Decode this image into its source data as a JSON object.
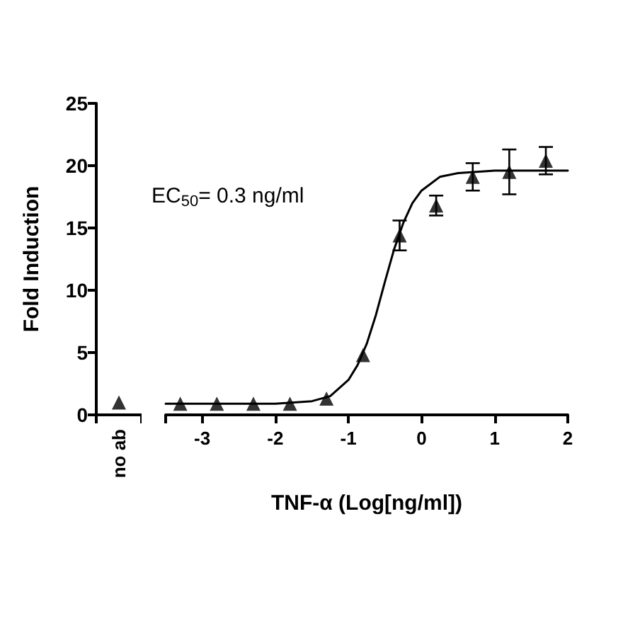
{
  "chart_data": [
    {
      "type": "scatter",
      "ylabel": "Fold Induction",
      "categories": [
        "no ab"
      ],
      "values": [
        1.0
      ],
      "color": "#000000",
      "marker": "triangle",
      "ylim": [
        0,
        25
      ],
      "yticks": [
        0,
        5,
        10,
        15,
        20,
        25
      ],
      "grid": false
    },
    {
      "type": "scatter",
      "xlabel": "TNF-α (Log[ng/ml])",
      "annotations": [
        "EC$_{50}$= 0.3 ng/ml"
      ],
      "x": [
        -3.3,
        -2.8,
        -2.3,
        -1.8,
        -1.3,
        -0.8,
        -0.3,
        0.2,
        0.7,
        1.2,
        1.7
      ],
      "xlim": [
        -3.5,
        2
      ],
      "xticks": [
        {
          "value": -3.5,
          "label": null
        },
        -3,
        -2,
        -1,
        0,
        1,
        2
      ],
      "ylim": [
        0,
        25
      ],
      "tick_labels": "x",
      "grid": false,
      "series": [
        {
          "color": "#000000",
          "marker": "triangle",
          "values": [
            0.9,
            0.9,
            0.9,
            0.9,
            1.3,
            4.8,
            14.4,
            16.8,
            19.1,
            19.5,
            20.4
          ],
          "errors": [
            null,
            null,
            null,
            null,
            null,
            null,
            1.2,
            0.8,
            1.1,
            1.8,
            1.1
          ]
        },
        {
          "type": "line",
          "color": "#000000",
          "marker": "none",
          "line_style": "solid",
          "x": [
            -3.5,
            -2.5,
            -2.0,
            -1.5,
            -1.25,
            -1.0,
            -0.875,
            -0.75,
            -0.625,
            -0.5,
            -0.375,
            -0.25,
            -0.125,
            0,
            0.25,
            0.5,
            1.0,
            2.0
          ],
          "values": [
            0.9,
            0.9,
            0.9,
            1.1,
            1.5,
            2.8,
            4.0,
            5.7,
            8.0,
            10.7,
            13.3,
            15.4,
            17.0,
            18.0,
            19.1,
            19.4,
            19.6,
            19.6
          ]
        }
      ]
    }
  ]
}
